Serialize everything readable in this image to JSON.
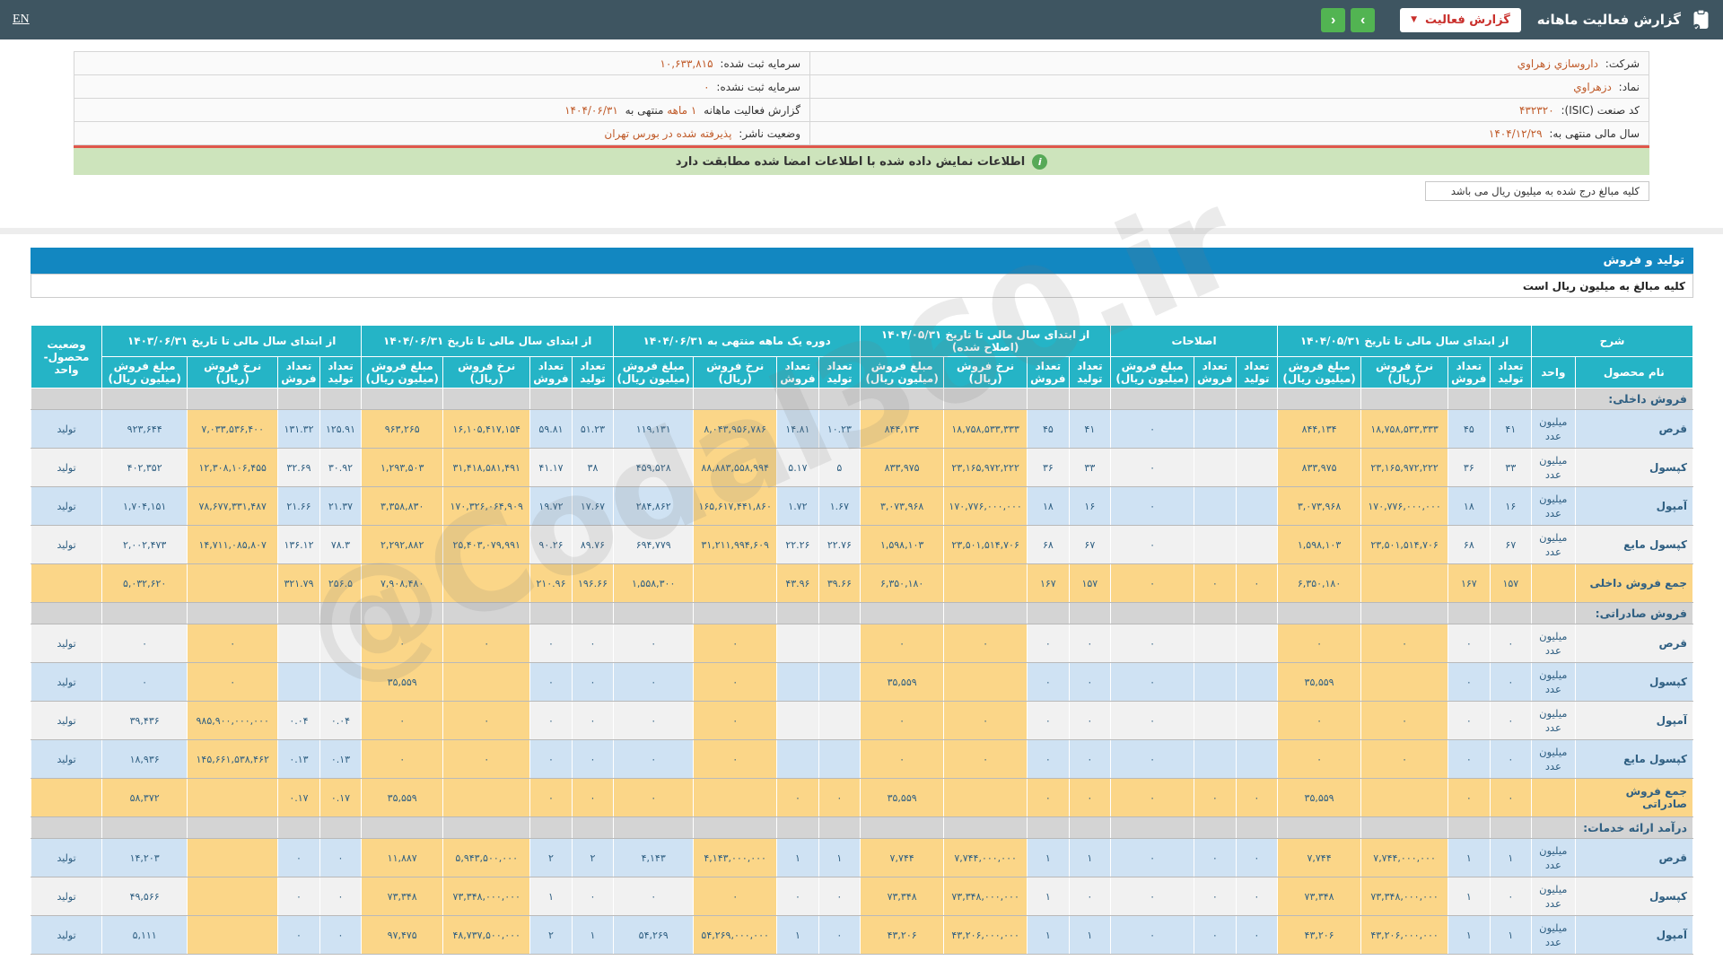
{
  "topbar": {
    "title": "گزارش فعالیت ماهانه",
    "report_button": "گزارش فعالیت",
    "caret": "▼",
    "next": "›",
    "prev": "‹",
    "lang": "EN"
  },
  "info": {
    "company_label": "شرکت:",
    "company": "داروسازي زهراوي",
    "capital_label": "سرمایه ثبت شده:",
    "capital": "۱۰,۶۳۳,۸۱۵",
    "symbol_label": "نماد:",
    "symbol": "دزهراوي",
    "unregistered_capital_label": "سرمایه ثبت نشده:",
    "unregistered_capital": "۰",
    "isic_label": "کد صنعت (ISIC):",
    "isic": "۴۳۲۳۲۰",
    "report_prefix": "گزارش فعالیت ماهانه",
    "report_period": "۱ ماهه",
    "report_middle": "منتهی به",
    "report_date": "۱۴۰۴/۰۶/۳۱",
    "fiscal_year_label": "سال مالی منتهی به:",
    "fiscal_year": "۱۴۰۴/۱۲/۲۹",
    "publisher_status_label": "وضعیت ناشر:",
    "publisher_status": "پذیرفته شده در بورس تهران"
  },
  "banner": {
    "text": "اطلاعات نمایش داده شده با اطلاعات امضا شده مطابقت دارد",
    "icon": "i"
  },
  "amounts_note_box": "کلیه مبالغ درج شده به میلیون ریال می باشد",
  "section_bar": "تولید و فروش",
  "table_note": "کلیه مبالغ به میلیون ریال است",
  "watermark": "@Codal360.ir",
  "colors": {
    "topbar": "#3e5561",
    "accent_teal": "#25b4c6",
    "bar_blue": "#1287c1",
    "highlight_yellow": "#fbd688",
    "stripe_blue": "#cfe2f3",
    "stripe_gray": "#f1f1f1",
    "section_gray": "#d4d4d4",
    "value_orange": "#c05b2a",
    "banner_green": "#cde4bc",
    "button_green": "#52b452",
    "danger_red": "#c9302c"
  },
  "table": {
    "header": {
      "desc": "شرح",
      "name_col": "نام محصول",
      "unit_col": "واحد",
      "g2": "از ابتدای سال مالی تا تاریخ ۱۴۰۴/۰۵/۳۱",
      "adj": "اصلاحات",
      "g4": "از ابتدای سال مالی تا تاریخ ۱۴۰۴/۰۵/۳۱ (اصلاح شده)",
      "g5": "دوره یک ماهه منتهی به ۱۴۰۴/۰۶/۳۱",
      "g6": "از ابتدای سال مالی تا تاریخ ۱۴۰۴/۰۶/۳۱",
      "g7": "از ابتدای سال مالی تا تاریخ ۱۴۰۳/۰۶/۳۱",
      "status": "وضعیت محصول-واحد",
      "sub_t": "تعداد تولید",
      "sub_s": "تعداد فروش",
      "sub_r": "نرخ فروش (ریال)",
      "sub_a": "مبلغ فروش (میلیون ریال)"
    },
    "rows": [
      {
        "type": "section",
        "label": "فروش داخلی:"
      },
      {
        "type": "product",
        "name": "قرص",
        "unit": "میلیون عدد",
        "stripe": "b",
        "status": "تولید",
        "cells": {
          "g2": [
            "۴۱",
            "۴۵",
            "۱۸,۷۵۸,۵۳۳,۳۳۳",
            "۸۴۴,۱۳۴"
          ],
          "adj": [
            "",
            "",
            "۰"
          ],
          "g4": [
            "۴۱",
            "۴۵",
            "۱۸,۷۵۸,۵۳۳,۳۳۳",
            "۸۴۴,۱۳۴"
          ],
          "g5": [
            "۱۰.۲۳",
            "۱۴.۸۱",
            "۸,۰۴۳,۹۵۶,۷۸۶",
            "۱۱۹,۱۳۱"
          ],
          "g6": [
            "۵۱.۲۳",
            "۵۹.۸۱",
            "۱۶,۱۰۵,۴۱۷,۱۵۴",
            "۹۶۳,۲۶۵"
          ],
          "g7": [
            "۱۲۵.۹۱",
            "۱۳۱.۳۲",
            "۷,۰۳۳,۵۳۶,۴۰۰",
            "۹۲۳,۶۴۴"
          ]
        }
      },
      {
        "type": "product",
        "name": "کپسول",
        "unit": "میلیون عدد",
        "stripe": "g",
        "status": "تولید",
        "cells": {
          "g2": [
            "۳۳",
            "۳۶",
            "۲۳,۱۶۵,۹۷۲,۲۲۲",
            "۸۳۳,۹۷۵"
          ],
          "adj": [
            "",
            "",
            "۰"
          ],
          "g4": [
            "۳۳",
            "۳۶",
            "۲۳,۱۶۵,۹۷۲,۲۲۲",
            "۸۳۳,۹۷۵"
          ],
          "g5": [
            "۵",
            "۵.۱۷",
            "۸۸,۸۸۳,۵۵۸,۹۹۴",
            "۴۵۹,۵۲۸"
          ],
          "g6": [
            "۳۸",
            "۴۱.۱۷",
            "۳۱,۴۱۸,۵۸۱,۴۹۱",
            "۱,۲۹۳,۵۰۳"
          ],
          "g7": [
            "۳۰.۹۲",
            "۳۲.۶۹",
            "۱۲,۳۰۸,۱۰۶,۴۵۵",
            "۴۰۲,۳۵۲"
          ]
        }
      },
      {
        "type": "product",
        "name": "آمپول",
        "unit": "میلیون عدد",
        "stripe": "b",
        "status": "تولید",
        "cells": {
          "g2": [
            "۱۶",
            "۱۸",
            "۱۷۰,۷۷۶,۰۰۰,۰۰۰",
            "۳,۰۷۳,۹۶۸"
          ],
          "adj": [
            "",
            "",
            "۰"
          ],
          "g4": [
            "۱۶",
            "۱۸",
            "۱۷۰,۷۷۶,۰۰۰,۰۰۰",
            "۳,۰۷۳,۹۶۸"
          ],
          "g5": [
            "۱.۶۷",
            "۱.۷۲",
            "۱۶۵,۶۱۷,۴۴۱,۸۶۰",
            "۲۸۴,۸۶۲"
          ],
          "g6": [
            "۱۷.۶۷",
            "۱۹.۷۲",
            "۱۷۰,۳۲۶,۰۶۴,۹۰۹",
            "۳,۳۵۸,۸۳۰"
          ],
          "g7": [
            "۲۱.۳۷",
            "۲۱.۶۶",
            "۷۸,۶۷۷,۳۳۱,۴۸۷",
            "۱,۷۰۴,۱۵۱"
          ]
        }
      },
      {
        "type": "product",
        "name": "کپسول مایع",
        "unit": "میلیون عدد",
        "stripe": "g",
        "status": "تولید",
        "cells": {
          "g2": [
            "۶۷",
            "۶۸",
            "۲۳,۵۰۱,۵۱۴,۷۰۶",
            "۱,۵۹۸,۱۰۳"
          ],
          "adj": [
            "",
            "",
            "۰"
          ],
          "g4": [
            "۶۷",
            "۶۸",
            "۲۳,۵۰۱,۵۱۴,۷۰۶",
            "۱,۵۹۸,۱۰۳"
          ],
          "g5": [
            "۲۲.۷۶",
            "۲۲.۲۶",
            "۳۱,۲۱۱,۹۹۴,۶۰۹",
            "۶۹۴,۷۷۹"
          ],
          "g6": [
            "۸۹.۷۶",
            "۹۰.۲۶",
            "۲۵,۴۰۳,۰۷۹,۹۹۱",
            "۲,۲۹۲,۸۸۲"
          ],
          "g7": [
            "۷۸.۳",
            "۱۳۶.۱۲",
            "۱۴,۷۱۱,۰۸۵,۸۰۷",
            "۲,۰۰۲,۴۷۳"
          ]
        }
      },
      {
        "type": "total",
        "name": "جمع فروش داخلی",
        "unit": "",
        "status": "",
        "cells": {
          "g2": [
            "۱۵۷",
            "۱۶۷",
            "",
            "۶,۳۵۰,۱۸۰"
          ],
          "adj": [
            "۰",
            "۰",
            "۰"
          ],
          "g4": [
            "۱۵۷",
            "۱۶۷",
            "",
            "۶,۳۵۰,۱۸۰"
          ],
          "g5": [
            "۳۹.۶۶",
            "۴۳.۹۶",
            "",
            "۱,۵۵۸,۳۰۰"
          ],
          "g6": [
            "۱۹۶.۶۶",
            "۲۱۰.۹۶",
            "",
            "۷,۹۰۸,۴۸۰"
          ],
          "g7": [
            "۲۵۶.۵",
            "۳۲۱.۷۹",
            "",
            "۵,۰۳۲,۶۲۰"
          ]
        }
      },
      {
        "type": "section",
        "label": "فروش صادراتی:"
      },
      {
        "type": "product",
        "name": "قرص",
        "unit": "میلیون عدد",
        "stripe": "g",
        "status": "تولید",
        "cells": {
          "g2": [
            "۰",
            "۰",
            "۰",
            "۰"
          ],
          "adj": [
            "",
            "",
            "۰"
          ],
          "g4": [
            "۰",
            "۰",
            "۰",
            "۰"
          ],
          "g5": [
            "",
            "",
            "۰",
            "۰"
          ],
          "g6": [
            "۰",
            "۰",
            "۰",
            "۰"
          ],
          "g7": [
            "",
            "",
            "۰",
            "۰"
          ]
        }
      },
      {
        "type": "product",
        "name": "کپسول",
        "unit": "میلیون عدد",
        "stripe": "b",
        "status": "تولید",
        "cells": {
          "g2": [
            "۰",
            "۰",
            "",
            "۳۵,۵۵۹"
          ],
          "adj": [
            "",
            "",
            "۰"
          ],
          "g4": [
            "۰",
            "۰",
            "",
            "۳۵,۵۵۹"
          ],
          "g5": [
            "",
            "",
            "۰",
            "۰"
          ],
          "g6": [
            "۰",
            "۰",
            "",
            "۳۵,۵۵۹"
          ],
          "g7": [
            "",
            "",
            "۰",
            "۰"
          ]
        }
      },
      {
        "type": "product",
        "name": "آمپول",
        "unit": "میلیون عدد",
        "stripe": "g",
        "status": "تولید",
        "cells": {
          "g2": [
            "۰",
            "۰",
            "۰",
            "۰"
          ],
          "adj": [
            "",
            "",
            "۰"
          ],
          "g4": [
            "۰",
            "۰",
            "۰",
            "۰"
          ],
          "g5": [
            "",
            "",
            "۰",
            "۰"
          ],
          "g6": [
            "۰",
            "۰",
            "۰",
            "۰"
          ],
          "g7": [
            "۰.۰۴",
            "۰.۰۴",
            "۹۸۵,۹۰۰,۰۰۰,۰۰۰",
            "۳۹,۴۳۶"
          ]
        }
      },
      {
        "type": "product",
        "name": "کپسول مایع",
        "unit": "میلیون عدد",
        "stripe": "b",
        "status": "تولید",
        "cells": {
          "g2": [
            "۰",
            "۰",
            "۰",
            "۰"
          ],
          "adj": [
            "",
            "",
            "۰"
          ],
          "g4": [
            "۰",
            "۰",
            "۰",
            "۰"
          ],
          "g5": [
            "",
            "",
            "۰",
            "۰"
          ],
          "g6": [
            "۰",
            "۰",
            "۰",
            "۰"
          ],
          "g7": [
            "۰.۱۳",
            "۰.۱۳",
            "۱۴۵,۶۶۱,۵۳۸,۴۶۲",
            "۱۸,۹۳۶"
          ]
        }
      },
      {
        "type": "total",
        "name": "جمع فروش صادراتی",
        "unit": "",
        "status": "",
        "cells": {
          "g2": [
            "۰",
            "۰",
            "",
            "۳۵,۵۵۹"
          ],
          "adj": [
            "۰",
            "۰",
            "۰"
          ],
          "g4": [
            "۰",
            "۰",
            "",
            "۳۵,۵۵۹"
          ],
          "g5": [
            "۰",
            "۰",
            "",
            "۰"
          ],
          "g6": [
            "۰",
            "۰",
            "",
            "۳۵,۵۵۹"
          ],
          "g7": [
            "۰.۱۷",
            "۰.۱۷",
            "",
            "۵۸,۳۷۲"
          ]
        }
      },
      {
        "type": "section",
        "label": "درآمد ارائه خدمات:"
      },
      {
        "type": "product",
        "name": "قرص",
        "unit": "میلیون عدد",
        "stripe": "b",
        "status": "تولید",
        "cells": {
          "g2": [
            "۱",
            "۱",
            "۷,۷۴۴,۰۰۰,۰۰۰",
            "۷,۷۴۴"
          ],
          "adj": [
            "۰",
            "۰",
            "۰"
          ],
          "g4": [
            "۱",
            "۱",
            "۷,۷۴۴,۰۰۰,۰۰۰",
            "۷,۷۴۴"
          ],
          "g5": [
            "۱",
            "۱",
            "۴,۱۴۳,۰۰۰,۰۰۰",
            "۴,۱۴۳"
          ],
          "g6": [
            "۲",
            "۲",
            "۵,۹۴۳,۵۰۰,۰۰۰",
            "۱۱,۸۸۷"
          ],
          "g7": [
            "۰",
            "۰",
            "",
            "۱۴,۲۰۳"
          ]
        }
      },
      {
        "type": "product",
        "name": "کپسول",
        "unit": "میلیون عدد",
        "stripe": "g",
        "status": "تولید",
        "cells": {
          "g2": [
            "۰",
            "۱",
            "۷۳,۳۴۸,۰۰۰,۰۰۰",
            "۷۳,۳۴۸"
          ],
          "adj": [
            "۰",
            "۰",
            "۰"
          ],
          "g4": [
            "۰",
            "۱",
            "۷۳,۳۴۸,۰۰۰,۰۰۰",
            "۷۳,۳۴۸"
          ],
          "g5": [
            "۰",
            "۰",
            "۰",
            "۰"
          ],
          "g6": [
            "۰",
            "۱",
            "۷۳,۳۴۸,۰۰۰,۰۰۰",
            "۷۳,۳۴۸"
          ],
          "g7": [
            "۰",
            "۰",
            "",
            "۴۹,۵۶۶"
          ]
        }
      },
      {
        "type": "product",
        "name": "آمپول",
        "unit": "میلیون عدد",
        "stripe": "b",
        "status": "تولید",
        "cells": {
          "g2": [
            "۱",
            "۱",
            "۴۳,۲۰۶,۰۰۰,۰۰۰",
            "۴۳,۲۰۶"
          ],
          "adj": [
            "۰",
            "۰",
            "۰"
          ],
          "g4": [
            "۱",
            "۱",
            "۴۳,۲۰۶,۰۰۰,۰۰۰",
            "۴۳,۲۰۶"
          ],
          "g5": [
            "۰",
            "۱",
            "۵۴,۲۶۹,۰۰۰,۰۰۰",
            "۵۴,۲۶۹"
          ],
          "g6": [
            "۱",
            "۲",
            "۴۸,۷۳۷,۵۰۰,۰۰۰",
            "۹۷,۴۷۵"
          ],
          "g7": [
            "۰",
            "۰",
            "",
            "۵,۱۱۱"
          ]
        }
      }
    ]
  }
}
